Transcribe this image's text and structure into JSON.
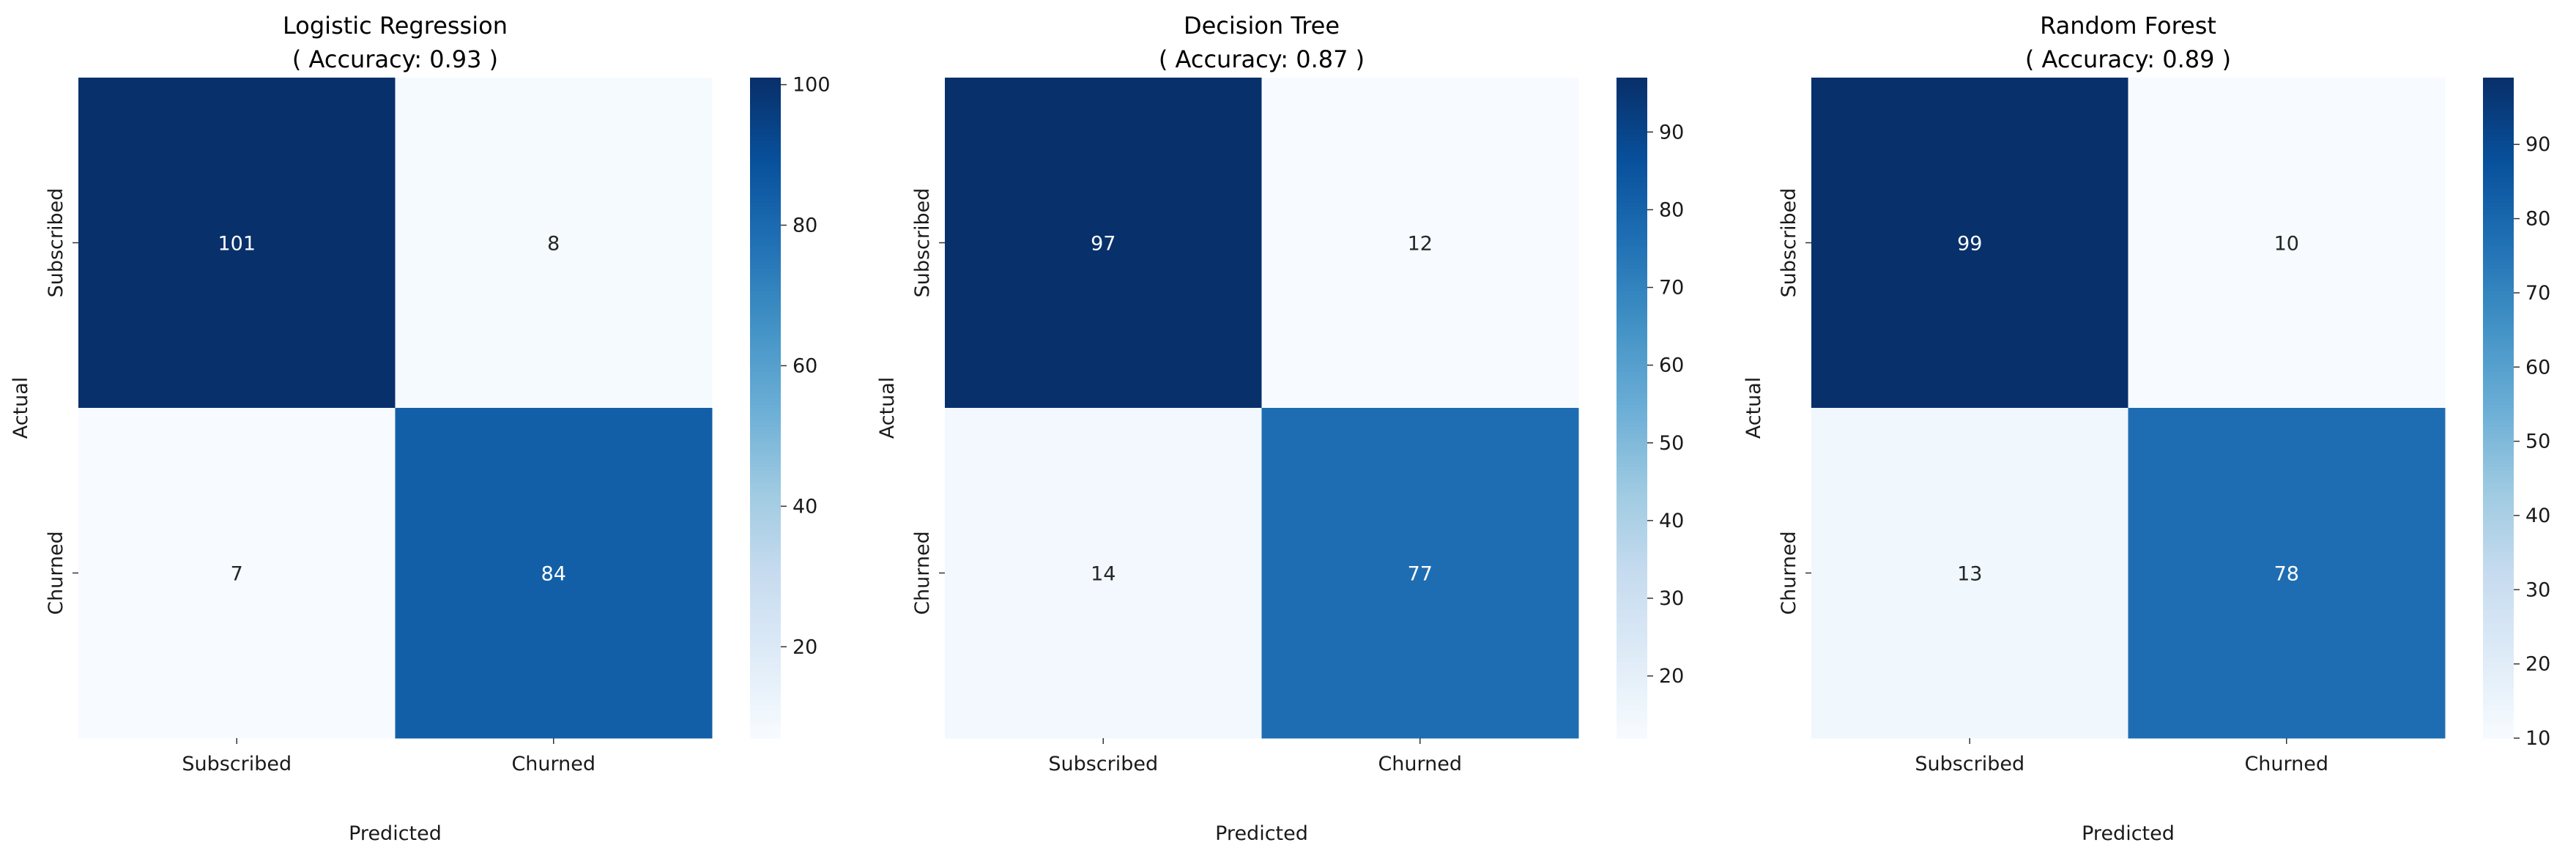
{
  "chart_data": [
    {
      "type": "heatmap",
      "title": "Logistic Regression",
      "subtitle": "( Accuracy: 0.93 )",
      "xlabel": "Predicted",
      "ylabel": "Actual",
      "x_categories": [
        "Subscribed",
        "Churned"
      ],
      "y_categories": [
        "Subscribed",
        "Churned"
      ],
      "values": [
        [
          101,
          8
        ],
        [
          7,
          84
        ]
      ],
      "colorbar": {
        "range": [
          7,
          101
        ],
        "ticks": [
          20,
          40,
          60,
          80,
          100
        ]
      },
      "colormap": "Blues"
    },
    {
      "type": "heatmap",
      "title": "Decision Tree",
      "subtitle": "( Accuracy: 0.87 )",
      "xlabel": "Predicted",
      "ylabel": "Actual",
      "x_categories": [
        "Subscribed",
        "Churned"
      ],
      "y_categories": [
        "Subscribed",
        "Churned"
      ],
      "values": [
        [
          97,
          12
        ],
        [
          14,
          77
        ]
      ],
      "colorbar": {
        "range": [
          12,
          97
        ],
        "ticks": [
          20,
          30,
          40,
          50,
          60,
          70,
          80,
          90
        ]
      },
      "colormap": "Blues"
    },
    {
      "type": "heatmap",
      "title": "Random Forest",
      "subtitle": "( Accuracy: 0.89 )",
      "xlabel": "Predicted",
      "ylabel": "Actual",
      "x_categories": [
        "Subscribed",
        "Churned"
      ],
      "y_categories": [
        "Subscribed",
        "Churned"
      ],
      "values": [
        [
          99,
          10
        ],
        [
          13,
          78
        ]
      ],
      "colorbar": {
        "range": [
          10,
          99
        ],
        "ticks": [
          10,
          20,
          30,
          40,
          50,
          60,
          70,
          80,
          90
        ]
      },
      "colormap": "Blues"
    }
  ]
}
